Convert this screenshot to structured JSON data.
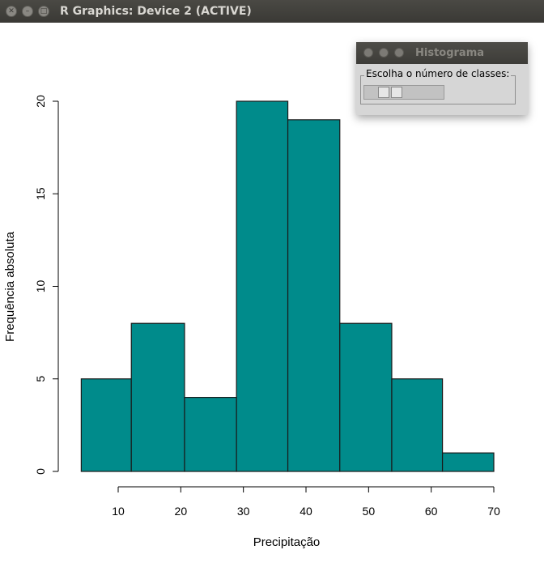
{
  "window": {
    "title": "R Graphics: Device 2 (ACTIVE)"
  },
  "dialog": {
    "title": "Histograma",
    "group_label": "Escolha o número de classes:",
    "slider_level": 0.25
  },
  "colors": {
    "bar_fill": "#008b8b",
    "bar_stroke": "#1a1a1a",
    "titlebar": "#3c3b37"
  },
  "chart_data": {
    "type": "bar",
    "bins": [
      {
        "from": 4.1,
        "to": 12.1,
        "count": 5
      },
      {
        "from": 12.1,
        "to": 20.6,
        "count": 8
      },
      {
        "from": 20.6,
        "to": 28.9,
        "count": 4
      },
      {
        "from": 28.9,
        "to": 37.1,
        "count": 20
      },
      {
        "from": 37.1,
        "to": 45.4,
        "count": 19
      },
      {
        "from": 45.4,
        "to": 53.7,
        "count": 8
      },
      {
        "from": 53.7,
        "to": 61.8,
        "count": 5
      },
      {
        "from": 61.8,
        "to": 70.0,
        "count": 1
      }
    ],
    "xlabel": "Precipitação",
    "ylabel": "Frequência absoluta",
    "xlim": [
      10,
      70
    ],
    "ylim": [
      0,
      20
    ],
    "xticks": [
      "10",
      "20",
      "30",
      "40",
      "50",
      "60",
      "70"
    ],
    "yticks": [
      "0",
      "5",
      "10",
      "15",
      "20"
    ],
    "grid": false
  }
}
